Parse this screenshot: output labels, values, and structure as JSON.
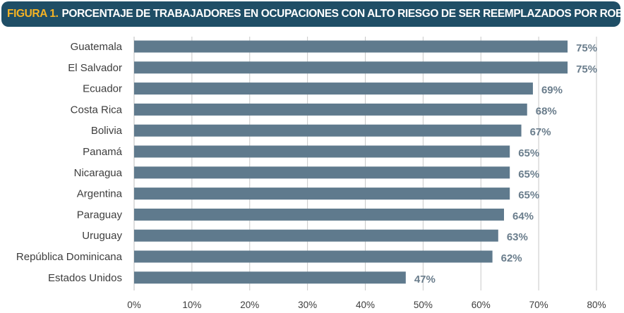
{
  "title": {
    "prefix": "FIGURA 1.",
    "text": "PORCENTAJE DE TRABAJADORES EN OCUPACIONES CON ALTO RIESGO DE SER REEMPLAZADOS POR ROBOTS"
  },
  "colors": {
    "title_bg": "#1f4e66",
    "title_prefix": "#f5b324",
    "bar": "#5f7a8d",
    "value_label": "#6a7d8c",
    "grid": "#c8c8c8"
  },
  "chart_data": {
    "type": "bar",
    "orientation": "horizontal",
    "categories": [
      "Guatemala",
      "El Salvador",
      "Ecuador",
      "Costa Rica",
      "Bolivia",
      "Panamá",
      "Nicaragua",
      "Argentina",
      "Paraguay",
      "Uruguay",
      "República Dominicana",
      "Estados Unidos"
    ],
    "values": [
      75,
      75,
      69,
      68,
      67,
      65,
      65,
      65,
      64,
      63,
      62,
      47
    ],
    "value_labels": [
      "75%",
      "75%",
      "69%",
      "68%",
      "67%",
      "65%",
      "65%",
      "65%",
      "64%",
      "63%",
      "62%",
      "47%"
    ],
    "xlim": [
      0,
      80
    ],
    "xticks": [
      0,
      10,
      20,
      30,
      40,
      50,
      60,
      70,
      80
    ],
    "xtick_labels": [
      "0%",
      "10%",
      "20%",
      "30%",
      "40%",
      "50%",
      "60%",
      "70%",
      "80%"
    ],
    "grid": true
  }
}
